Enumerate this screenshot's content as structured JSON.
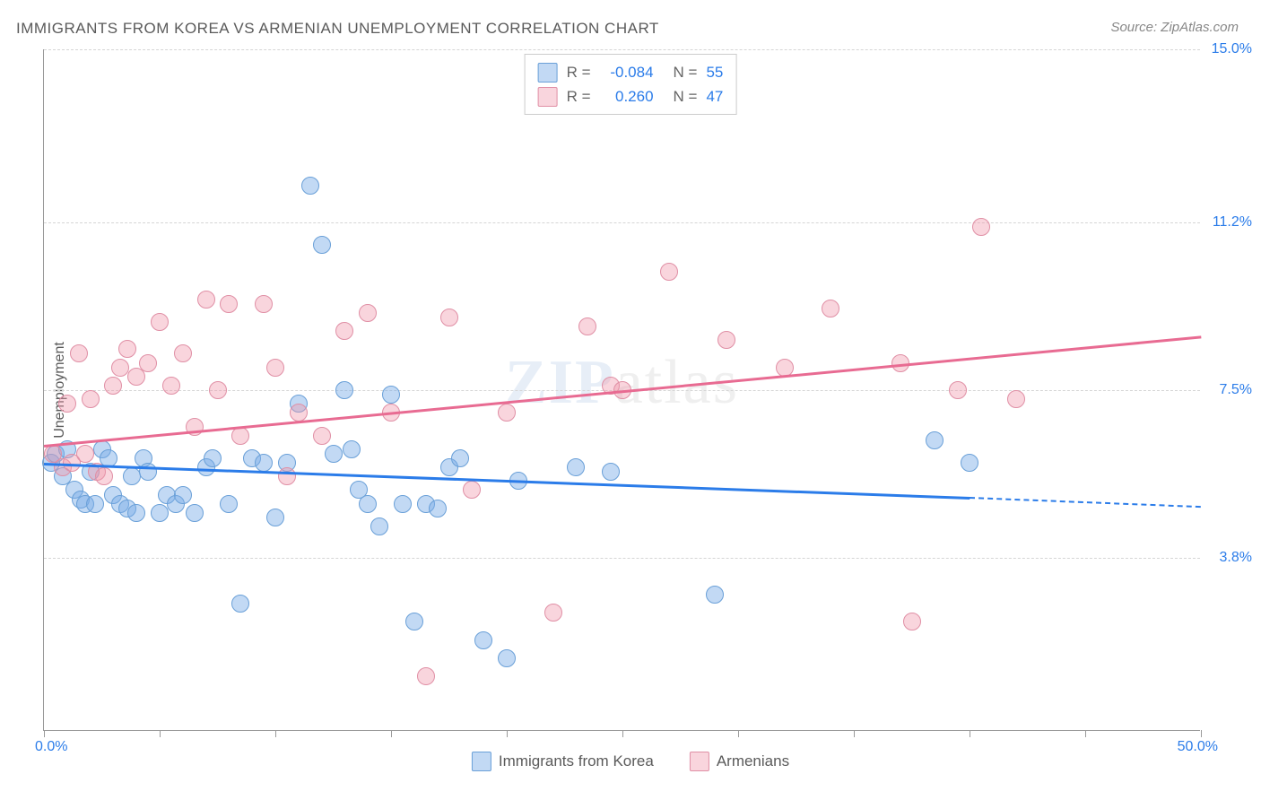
{
  "title": "IMMIGRANTS FROM KOREA VS ARMENIAN UNEMPLOYMENT CORRELATION CHART",
  "source": "Source: ZipAtlas.com",
  "watermark": {
    "bold": "ZIP",
    "light": "atlas"
  },
  "chart": {
    "type": "scatter",
    "xlim": [
      0,
      50
    ],
    "ylim": [
      0,
      15
    ],
    "y_axis_title": "Unemployment",
    "y_ticks": [
      3.8,
      7.5,
      11.2,
      15.0
    ],
    "y_tick_labels": [
      "3.8%",
      "7.5%",
      "11.2%",
      "15.0%"
    ],
    "x_ticks_minor": [
      0,
      5,
      10,
      15,
      20,
      25,
      30,
      35,
      40,
      45,
      50
    ],
    "x_label_start": "0.0%",
    "x_label_end": "50.0%",
    "background_color": "#ffffff",
    "grid_color": "#d5d5d5",
    "axis_color": "#9a9a9a",
    "tick_label_color": "#2b7ce9",
    "series": [
      {
        "name": "Immigrants from Korea",
        "legend_label": "Immigrants from Korea",
        "fill_color": "rgba(120,170,230,0.45)",
        "stroke_color": "#6aa0d8",
        "trend_color": "#2b7ce9",
        "point_radius": 10,
        "R": "-0.084",
        "N": "55",
        "trend": {
          "x1": 0,
          "y1": 5.9,
          "x2": 40,
          "y2": 5.15,
          "dash_to_x": 50,
          "dash_to_y": 4.95
        },
        "points": [
          [
            0.3,
            5.9
          ],
          [
            0.5,
            6.1
          ],
          [
            0.8,
            5.6
          ],
          [
            1.0,
            6.2
          ],
          [
            1.3,
            5.3
          ],
          [
            1.6,
            5.1
          ],
          [
            1.8,
            5.0
          ],
          [
            2.0,
            5.7
          ],
          [
            2.2,
            5.0
          ],
          [
            2.5,
            6.2
          ],
          [
            2.8,
            6.0
          ],
          [
            3.0,
            5.2
          ],
          [
            3.3,
            5.0
          ],
          [
            3.6,
            4.9
          ],
          [
            3.8,
            5.6
          ],
          [
            4.0,
            4.8
          ],
          [
            4.3,
            6.0
          ],
          [
            4.5,
            5.7
          ],
          [
            5.0,
            4.8
          ],
          [
            5.3,
            5.2
          ],
          [
            5.7,
            5.0
          ],
          [
            6.0,
            5.2
          ],
          [
            6.5,
            4.8
          ],
          [
            7.0,
            5.8
          ],
          [
            7.3,
            6.0
          ],
          [
            8.0,
            5.0
          ],
          [
            8.5,
            2.8
          ],
          [
            9.0,
            6.0
          ],
          [
            9.5,
            5.9
          ],
          [
            10.0,
            4.7
          ],
          [
            10.5,
            5.9
          ],
          [
            11.0,
            7.2
          ],
          [
            11.5,
            12.0
          ],
          [
            12.0,
            10.7
          ],
          [
            12.5,
            6.1
          ],
          [
            13.0,
            7.5
          ],
          [
            13.3,
            6.2
          ],
          [
            13.6,
            5.3
          ],
          [
            14.0,
            5.0
          ],
          [
            14.5,
            4.5
          ],
          [
            15.0,
            7.4
          ],
          [
            15.5,
            5.0
          ],
          [
            16.0,
            2.4
          ],
          [
            16.5,
            5.0
          ],
          [
            17.0,
            4.9
          ],
          [
            17.5,
            5.8
          ],
          [
            18.0,
            6.0
          ],
          [
            19.0,
            2.0
          ],
          [
            20.0,
            1.6
          ],
          [
            20.5,
            5.5
          ],
          [
            23.0,
            5.8
          ],
          [
            24.5,
            5.7
          ],
          [
            29.0,
            3.0
          ],
          [
            38.5,
            6.4
          ],
          [
            40.0,
            5.9
          ]
        ]
      },
      {
        "name": "Armenians",
        "legend_label": "Armenians",
        "fill_color": "rgba(240,150,170,0.40)",
        "stroke_color": "#e08fa5",
        "trend_color": "#e86b92",
        "point_radius": 10,
        "R": "0.260",
        "N": "47",
        "trend": {
          "x1": 0,
          "y1": 6.3,
          "x2": 50,
          "y2": 8.7
        },
        "points": [
          [
            0.4,
            6.1
          ],
          [
            0.8,
            5.8
          ],
          [
            1.0,
            7.2
          ],
          [
            1.2,
            5.9
          ],
          [
            1.5,
            8.3
          ],
          [
            1.8,
            6.1
          ],
          [
            2.0,
            7.3
          ],
          [
            2.3,
            5.7
          ],
          [
            2.6,
            5.6
          ],
          [
            3.0,
            7.6
          ],
          [
            3.3,
            8.0
          ],
          [
            3.6,
            8.4
          ],
          [
            4.0,
            7.8
          ],
          [
            4.5,
            8.1
          ],
          [
            5.0,
            9.0
          ],
          [
            5.5,
            7.6
          ],
          [
            6.0,
            8.3
          ],
          [
            6.5,
            6.7
          ],
          [
            7.0,
            9.5
          ],
          [
            7.5,
            7.5
          ],
          [
            8.0,
            9.4
          ],
          [
            8.5,
            6.5
          ],
          [
            9.5,
            9.4
          ],
          [
            10.0,
            8.0
          ],
          [
            10.5,
            5.6
          ],
          [
            11.0,
            7.0
          ],
          [
            12.0,
            6.5
          ],
          [
            13.0,
            8.8
          ],
          [
            14.0,
            9.2
          ],
          [
            15.0,
            7.0
          ],
          [
            16.5,
            1.2
          ],
          [
            17.5,
            9.1
          ],
          [
            18.5,
            5.3
          ],
          [
            20.0,
            7.0
          ],
          [
            22.0,
            2.6
          ],
          [
            23.5,
            8.9
          ],
          [
            24.5,
            7.6
          ],
          [
            25.0,
            7.5
          ],
          [
            27.0,
            10.1
          ],
          [
            29.5,
            8.6
          ],
          [
            32.0,
            8.0
          ],
          [
            34.0,
            9.3
          ],
          [
            37.0,
            8.1
          ],
          [
            37.5,
            2.4
          ],
          [
            39.5,
            7.5
          ],
          [
            40.5,
            11.1
          ],
          [
            42.0,
            7.3
          ]
        ]
      }
    ]
  }
}
